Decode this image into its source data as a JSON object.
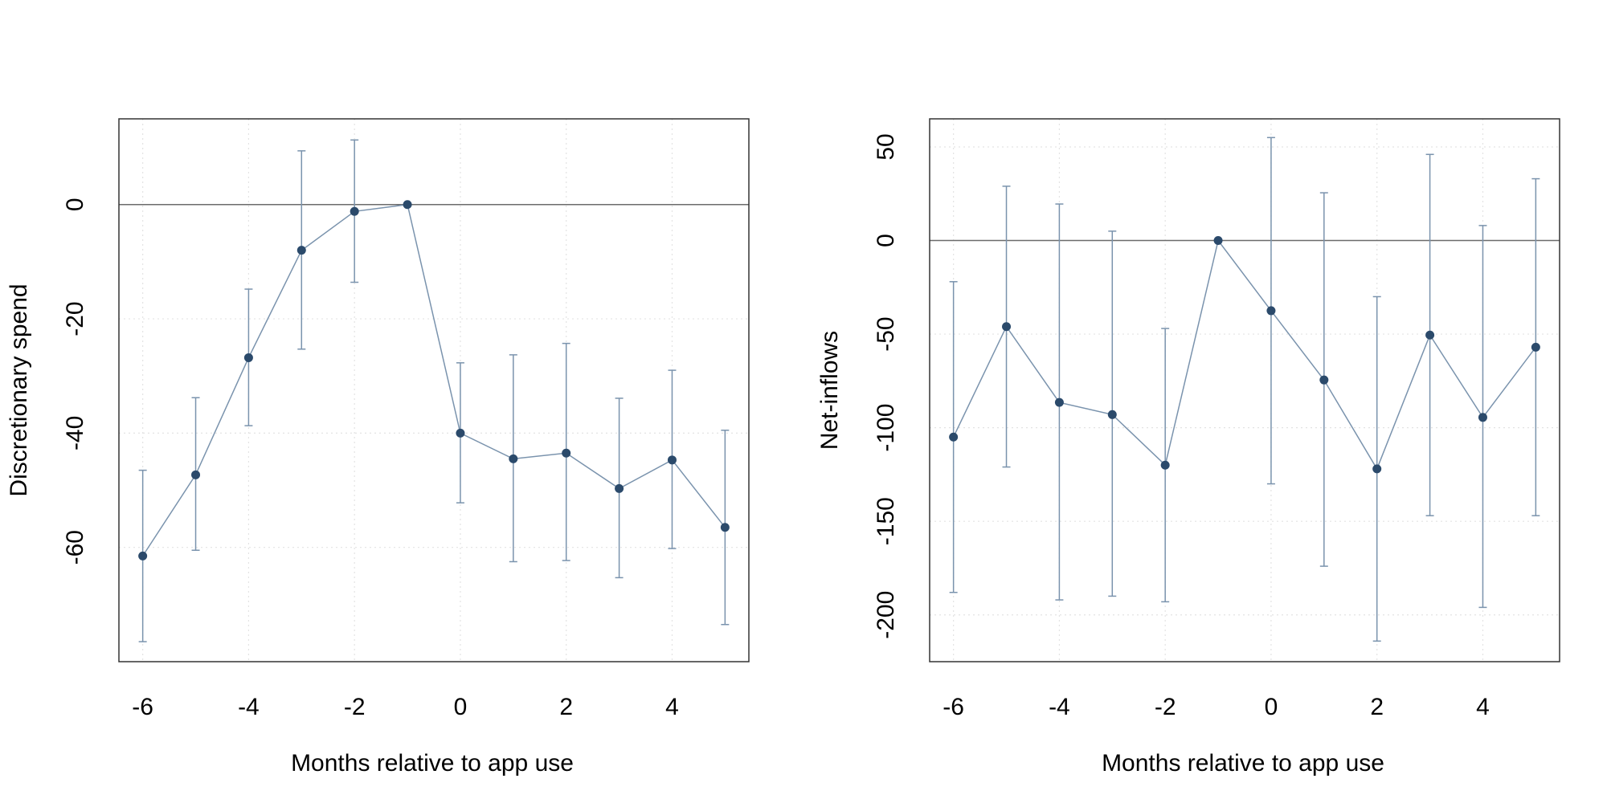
{
  "colors": {
    "point": "#2b4a6b",
    "line": "#7a93ad",
    "errorbar": "#7a93ad",
    "zero_line": "#6b6b6b",
    "grid": "#e3e3e3",
    "frame": "#333333"
  },
  "chart_data": [
    {
      "type": "line",
      "subtype": "event-study coefficients with error bars",
      "xlabel": "Months relative to app use",
      "ylabel": "Discretionary spend",
      "xlim": [
        -6.45,
        5.45
      ],
      "ylim": [
        -80,
        15
      ],
      "xticks": [
        "-6",
        "-4",
        "-2",
        "0",
        "2",
        "4"
      ],
      "xtick_values": [
        -6,
        -4,
        -2,
        0,
        2,
        4
      ],
      "yticks": [
        "-60",
        "-40",
        "-20",
        "0"
      ],
      "ytick_values": [
        -60,
        -40,
        -20,
        0
      ],
      "reference_line": 0,
      "grid": true,
      "x": [
        -6,
        -5,
        -4,
        -3,
        -2,
        -1,
        0,
        1,
        2,
        3,
        4,
        5
      ],
      "y": [
        -61.5,
        -47.3,
        -26.8,
        -8,
        -1.2,
        0,
        -40,
        -44.5,
        -43.5,
        -49.7,
        -44.7,
        -56.5
      ],
      "lower": [
        -76.5,
        -60.5,
        -38.7,
        -25.3,
        -13.6,
        0,
        -52.2,
        -62.5,
        -62.3,
        -65.3,
        -60.2,
        -73.5
      ],
      "upper": [
        -46.5,
        -33.8,
        -14.8,
        9.4,
        11.3,
        0,
        -27.7,
        -26.3,
        -24.3,
        -33.9,
        -29,
        -39.5
      ]
    },
    {
      "type": "line",
      "subtype": "event-study coefficients with error bars",
      "xlabel": "Months relative to app use",
      "ylabel": "Net-inflows",
      "xlim": [
        -6.45,
        5.45
      ],
      "ylim": [
        -225,
        65
      ],
      "xticks": [
        "-6",
        "-4",
        "-2",
        "0",
        "2",
        "4"
      ],
      "xtick_values": [
        -6,
        -4,
        -2,
        0,
        2,
        4
      ],
      "yticks": [
        "-200",
        "-150",
        "-100",
        "-50",
        "0",
        "50"
      ],
      "ytick_values": [
        -200,
        -150,
        -100,
        -50,
        0,
        50
      ],
      "reference_line": 0,
      "grid": true,
      "x": [
        -6,
        -5,
        -4,
        -3,
        -2,
        -1,
        0,
        1,
        2,
        3,
        4,
        5
      ],
      "y": [
        -105,
        -46,
        -86.5,
        -93,
        -120,
        0,
        -37.5,
        -74.5,
        -122,
        -50.5,
        -94.5,
        -57
      ],
      "lower": [
        -188,
        -121,
        -192,
        -190,
        -193,
        0,
        -130,
        -174,
        -214,
        -147,
        -196,
        -147
      ],
      "upper": [
        -22,
        29,
        19.5,
        5,
        -47,
        0,
        55,
        25.5,
        -30,
        46,
        8,
        33
      ]
    }
  ]
}
